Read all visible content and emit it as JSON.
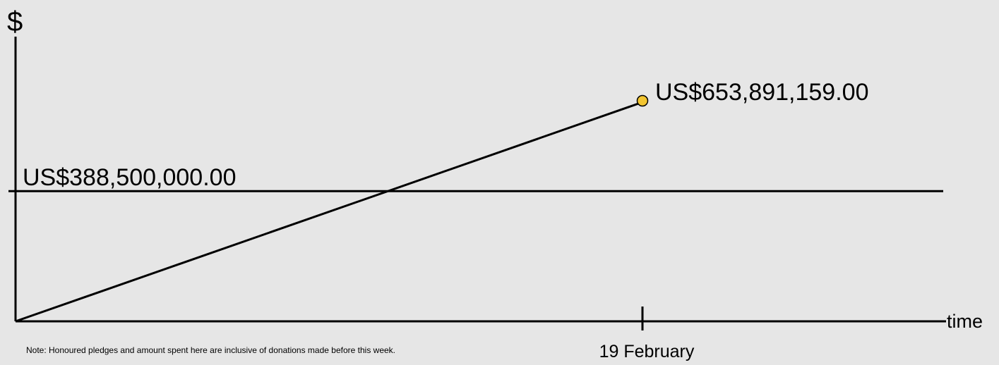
{
  "chart_data": {
    "type": "line",
    "ylabel": "$",
    "xlabel": "time",
    "x_ticks": [
      "19 February"
    ],
    "series": [
      {
        "points": [
          {
            "x": "start",
            "y": 0
          },
          {
            "x": "19 February",
            "y": 653891159.0
          }
        ],
        "end_label": "US$653,891,159.00",
        "end_marker_color": "#f2c531"
      }
    ],
    "reference_line": {
      "value": 388500000.0,
      "label": "US$388,500,000.00"
    },
    "grid": false,
    "legend": "none",
    "note": "Note: Honoured pledges and amount spent here are inclusive of donations made before this week."
  },
  "colors": {
    "background": "#e6e6e6",
    "lines": "#000000",
    "marker_fill": "#f2c531"
  }
}
